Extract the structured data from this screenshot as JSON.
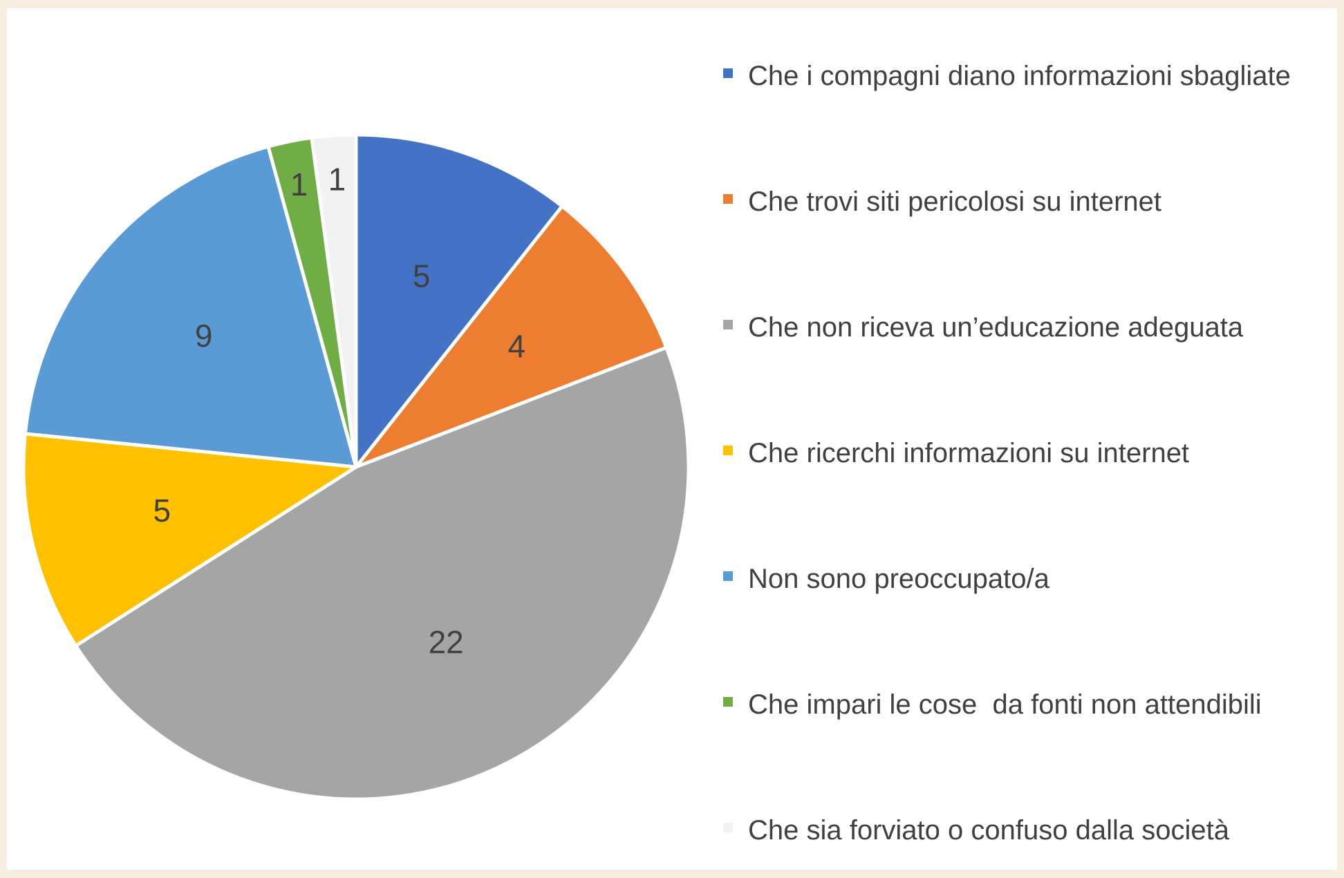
{
  "chart_data": {
    "type": "pie",
    "categories": [
      "Che i compagni diano informazioni sbagliate",
      "Che trovi siti pericolosi su internet",
      "Che non riceva un’educazione adeguata",
      "Che ricerchi informazioni su internet",
      "Non sono preoccupato/a",
      "Che impari le cose  da fonti non attendibili",
      "Che sia forviato o confuso dalla società"
    ],
    "values": [
      5,
      4,
      22,
      5,
      9,
      1,
      1
    ],
    "colors": [
      "#4472c4",
      "#ed7d31",
      "#a5a5a5",
      "#ffc000",
      "#5b9bd5",
      "#70ad47",
      "#f2f2f2"
    ],
    "legend": "right"
  }
}
